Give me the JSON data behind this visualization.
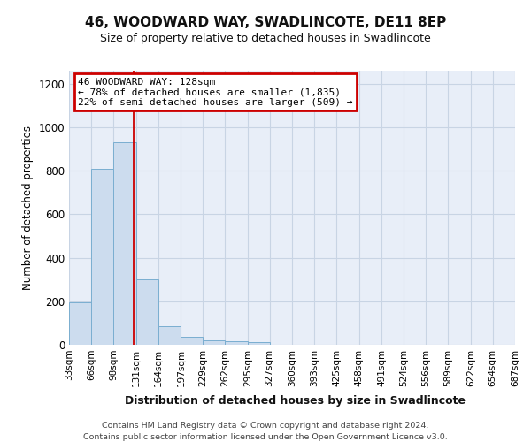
{
  "title": "46, WOODWARD WAY, SWADLINCOTE, DE11 8EP",
  "subtitle": "Size of property relative to detached houses in Swadlincote",
  "xlabel": "Distribution of detached houses by size in Swadlincote",
  "ylabel": "Number of detached properties",
  "footer1": "Contains HM Land Registry data © Crown copyright and database right 2024.",
  "footer2": "Contains public sector information licensed under the Open Government Licence v3.0.",
  "bin_edges": [
    33,
    66,
    98,
    131,
    164,
    197,
    229,
    262,
    295,
    327,
    360,
    393,
    425,
    458,
    491,
    524,
    556,
    589,
    622,
    654,
    687
  ],
  "bar_heights": [
    195,
    810,
    930,
    300,
    85,
    35,
    20,
    15,
    12,
    0,
    0,
    0,
    0,
    0,
    0,
    0,
    0,
    0,
    0,
    0
  ],
  "bar_color": "#ccdcee",
  "bar_edge_color": "#7aaed0",
  "grid_color": "#c8d4e4",
  "background_color": "#e8eef8",
  "vline_x": 128,
  "vline_color": "#cc0000",
  "ylim": [
    0,
    1260
  ],
  "yticks": [
    0,
    200,
    400,
    600,
    800,
    1000,
    1200
  ],
  "annotation_text": "46 WOODWARD WAY: 128sqm\n← 78% of detached houses are smaller (1,835)\n22% of semi-detached houses are larger (509) →",
  "annotation_box_color": "#cc0000",
  "tick_labels": [
    "33sqm",
    "66sqm",
    "98sqm",
    "131sqm",
    "164sqm",
    "197sqm",
    "229sqm",
    "262sqm",
    "295sqm",
    "327sqm",
    "360sqm",
    "393sqm",
    "425sqm",
    "458sqm",
    "491sqm",
    "524sqm",
    "556sqm",
    "589sqm",
    "622sqm",
    "654sqm",
    "687sqm"
  ]
}
